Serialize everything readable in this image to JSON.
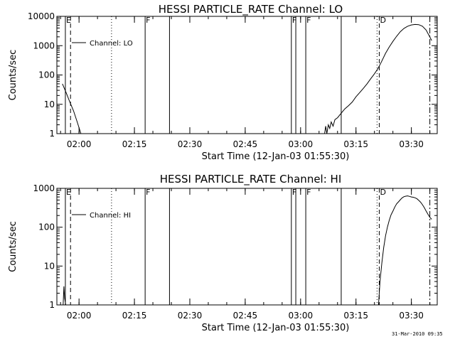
{
  "footer": {
    "date": "31-Mar-2010 09:35"
  },
  "chart_data": [
    {
      "type": "line",
      "title": "HESSI PARTICLE_RATE Channel: LO",
      "xlabel": "Start Time (12-Jan-03 01:55:30)",
      "ylabel": "Counts/sec",
      "y_scale": "log",
      "ylim": [
        1,
        10000
      ],
      "y_tick_labels": [
        "1",
        "10",
        "100",
        "1000",
        "10000"
      ],
      "y_tick_values": [
        1,
        10,
        100,
        1000,
        10000
      ],
      "x_range_min": [
        -1.5,
        38.5
      ],
      "x_tick_labels": [
        "02:00",
        "02:15",
        "02:30",
        "02:45",
        "03:00",
        "03:15",
        "03:30"
      ],
      "x_tick_values": [
        4.5,
        19.5,
        34.5,
        49.5,
        64.5,
        79.5,
        94.5
      ],
      "legend": {
        "label": "Channel: LO",
        "position": "top-left"
      },
      "markers": [
        {
          "t": 0.8,
          "style": "solid",
          "label": "E"
        },
        {
          "t": 2.2,
          "style": "dashed",
          "label": ""
        },
        {
          "t": 13.3,
          "style": "dotted",
          "label": ""
        },
        {
          "t": 22.4,
          "style": "solid",
          "label": "F"
        },
        {
          "t": 29.0,
          "style": "solid",
          "label": ""
        },
        {
          "t": 62.0,
          "style": "solid",
          "label": "F"
        },
        {
          "t": 63.2,
          "style": "solid",
          "label": ""
        },
        {
          "t": 65.9,
          "style": "solid",
          "label": "F"
        },
        {
          "t": 75.5,
          "style": "solid",
          "label": ""
        },
        {
          "t": 85.2,
          "style": "dotted",
          "label": ""
        },
        {
          "t": 85.8,
          "style": "dashed",
          "label": "D"
        },
        {
          "t": 99.5,
          "style": "dashdot",
          "label": ""
        }
      ],
      "series": [
        {
          "segments": [
            [
              [
                0.0,
                50
              ],
              [
                1.0,
                25
              ],
              [
                2.0,
                12
              ],
              [
                3.0,
                6
              ],
              [
                4.0,
                2.5
              ],
              [
                5.0,
                1.0
              ]
            ],
            [
              [
                71.0,
                1
              ],
              [
                71.3,
                1.8
              ],
              [
                71.6,
                1
              ],
              [
                72.0,
                2
              ],
              [
                72.4,
                1.5
              ],
              [
                72.8,
                2.5
              ],
              [
                73.3,
                1.8
              ],
              [
                73.8,
                3
              ],
              [
                74.5,
                3.5
              ],
              [
                75.5,
                5
              ],
              [
                76.5,
                7
              ],
              [
                77.5,
                9
              ],
              [
                78.5,
                12
              ],
              [
                79.5,
                18
              ],
              [
                80.5,
                25
              ],
              [
                81.5,
                35
              ],
              [
                82.5,
                50
              ],
              [
                83.5,
                75
              ],
              [
                84.5,
                110
              ],
              [
                85.5,
                170
              ],
              [
                86.5,
                300
              ],
              [
                87.5,
                550
              ],
              [
                88.5,
                900
              ],
              [
                89.5,
                1400
              ],
              [
                90.5,
                2100
              ],
              [
                91.5,
                3000
              ],
              [
                92.5,
                3900
              ],
              [
                93.5,
                4600
              ],
              [
                94.5,
                5100
              ],
              [
                95.5,
                5300
              ],
              [
                96.5,
                5200
              ],
              [
                97.5,
                4600
              ],
              [
                98.5,
                3400
              ],
              [
                99.3,
                2200
              ],
              [
                100.0,
                1500
              ]
            ]
          ]
        }
      ]
    },
    {
      "type": "line",
      "title": "HESSI PARTICLE_RATE Channel: HI",
      "xlabel": "Start Time (12-Jan-03 01:55:30)",
      "ylabel": "Counts/sec",
      "y_scale": "log",
      "ylim": [
        1,
        1000
      ],
      "y_tick_labels": [
        "1",
        "10",
        "100",
        "1000"
      ],
      "y_tick_values": [
        1,
        10,
        100,
        1000
      ],
      "x_tick_labels": [
        "02:00",
        "02:15",
        "02:30",
        "02:45",
        "03:00",
        "03:15",
        "03:30"
      ],
      "x_tick_values": [
        4.5,
        19.5,
        34.5,
        49.5,
        64.5,
        79.5,
        94.5
      ],
      "legend": {
        "label": "Channel: HI",
        "position": "top-left"
      },
      "markers": [
        {
          "t": 0.8,
          "style": "solid",
          "label": "E"
        },
        {
          "t": 2.2,
          "style": "dashed",
          "label": ""
        },
        {
          "t": 13.3,
          "style": "dotted",
          "label": ""
        },
        {
          "t": 22.4,
          "style": "solid",
          "label": "F"
        },
        {
          "t": 29.0,
          "style": "solid",
          "label": ""
        },
        {
          "t": 62.0,
          "style": "solid",
          "label": "F"
        },
        {
          "t": 63.2,
          "style": "solid",
          "label": ""
        },
        {
          "t": 65.9,
          "style": "solid",
          "label": "F"
        },
        {
          "t": 75.5,
          "style": "solid",
          "label": ""
        },
        {
          "t": 85.2,
          "style": "dotted",
          "label": ""
        },
        {
          "t": 85.8,
          "style": "dashed",
          "label": "D"
        },
        {
          "t": 99.5,
          "style": "dashdot",
          "label": ""
        }
      ],
      "series": [
        {
          "segments": [
            [
              [
                0.2,
                1
              ],
              [
                0.4,
                3
              ],
              [
                0.6,
                1.5
              ],
              [
                0.9,
                1
              ]
            ],
            [
              [
                85.6,
                1
              ],
              [
                86.0,
                4
              ],
              [
                86.5,
                12
              ],
              [
                87.0,
                30
              ],
              [
                87.5,
                60
              ],
              [
                88.0,
                100
              ],
              [
                88.5,
                150
              ],
              [
                89.0,
                210
              ],
              [
                89.5,
                260
              ],
              [
                90.0,
                330
              ],
              [
                90.5,
                400
              ],
              [
                91.0,
                450
              ],
              [
                91.5,
                510
              ],
              [
                92.0,
                570
              ],
              [
                92.5,
                610
              ],
              [
                93.0,
                630
              ],
              [
                93.5,
                640
              ],
              [
                94.0,
                620
              ],
              [
                94.5,
                600
              ],
              [
                95.0,
                590
              ],
              [
                95.5,
                570
              ],
              [
                96.0,
                540
              ],
              [
                96.5,
                490
              ],
              [
                97.0,
                440
              ],
              [
                97.5,
                380
              ],
              [
                98.0,
                320
              ],
              [
                98.5,
                260
              ],
              [
                99.0,
                215
              ],
              [
                99.5,
                180
              ],
              [
                100.0,
                160
              ]
            ]
          ]
        }
      ]
    }
  ]
}
